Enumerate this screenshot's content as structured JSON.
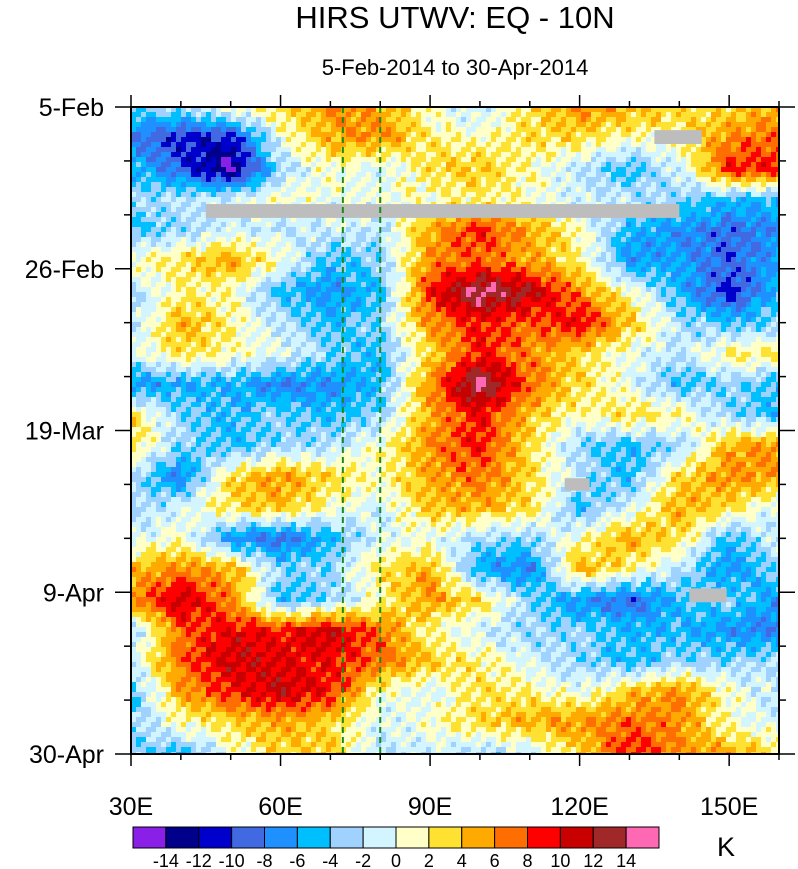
{
  "chart_data": {
    "type": "heatmap",
    "title": "HIRS UTWV: EQ - 10N",
    "subtitle": "5-Feb-2014 to 30-Apr-2014",
    "xlabel": "",
    "ylabel": "",
    "xlim": [
      30,
      160
    ],
    "ylim_days_since_5Feb": [
      0,
      84
    ],
    "x_ticks": [
      {
        "v": 30,
        "label": "30E"
      },
      {
        "v": 60,
        "label": "60E"
      },
      {
        "v": 90,
        "label": "90E"
      },
      {
        "v": 120,
        "label": "120E"
      },
      {
        "v": 150,
        "label": "150E"
      }
    ],
    "y_ticks": [
      {
        "v": 0,
        "label": "5-Feb"
      },
      {
        "v": 21,
        "label": "26-Feb"
      },
      {
        "v": 42,
        "label": "19-Mar"
      },
      {
        "v": 63,
        "label": "9-Apr"
      },
      {
        "v": 84,
        "label": "30-Apr"
      }
    ],
    "reference_lines_lon": [
      72.5,
      80
    ],
    "colorbar": {
      "unit": "K",
      "levels": [
        "-14",
        "-12",
        "-10",
        "-8",
        "-6",
        "-4",
        "-2",
        "0",
        "2",
        "4",
        "6",
        "8",
        "10",
        "12",
        "14"
      ],
      "colors": [
        "#8a20e8",
        "#00008b",
        "#0000cd",
        "#4169e1",
        "#1e90ff",
        "#00bfff",
        "#a0d2ff",
        "#d2f5ff",
        "#ffffc8",
        "#ffe132",
        "#ffaa00",
        "#ff6e00",
        "#ff0000",
        "#c80000",
        "#a02828",
        "#ff69b4"
      ]
    },
    "missing_color": "#bdbdbd",
    "missing_regions": [
      {
        "lon": [
          45,
          140
        ],
        "day": [
          12.6,
          14.4
        ]
      },
      {
        "lon": [
          135,
          144.5
        ],
        "day": [
          3,
          4.8
        ]
      },
      {
        "lon": [
          117,
          122
        ],
        "day": [
          48.2,
          49.8
        ]
      },
      {
        "lon": [
          142,
          149.5
        ],
        "day": [
          62.5,
          64.3
        ]
      }
    ],
    "grid_lon": [
      30,
      40,
      50,
      60,
      70,
      80,
      90,
      100,
      110,
      120,
      130,
      140,
      150,
      160
    ],
    "grid_day": [
      0,
      4,
      8,
      12,
      16,
      20,
      24,
      28,
      32,
      36,
      40,
      44,
      48,
      52,
      56,
      60,
      64,
      68,
      72,
      76,
      80,
      84
    ],
    "values": [
      [
        -3,
        -2,
        1,
        3,
        6,
        5,
        1,
        -2,
        3,
        6,
        5,
        3,
        3,
        5
      ],
      [
        -8,
        -11,
        -11,
        0,
        5,
        6,
        2,
        1,
        3,
        3,
        1,
        2,
        6,
        7
      ],
      [
        -5,
        -9,
        -15,
        -3,
        1,
        -1,
        3,
        4,
        1,
        -2,
        -5,
        -1,
        9,
        9
      ],
      [
        -3,
        -2,
        -1,
        1,
        0,
        0,
        1,
        2,
        1,
        -1,
        -2,
        -3,
        -5,
        -5
      ],
      [
        -5,
        -3,
        -1,
        -2,
        -1,
        -2,
        5,
        9,
        5,
        1,
        -5,
        -7,
        -9,
        -7
      ],
      [
        1,
        3,
        5,
        1,
        -5,
        -3,
        6,
        7,
        5,
        2,
        -7,
        -6,
        -9,
        -6
      ],
      [
        -3,
        2,
        1,
        -5,
        -7,
        -5,
        9,
        15,
        12,
        6,
        1,
        -5,
        -11,
        -5
      ],
      [
        -2,
        5,
        2,
        -2,
        -5,
        -3,
        6,
        9,
        7,
        10,
        4,
        -2,
        -5,
        -3
      ],
      [
        -1,
        3,
        1,
        0,
        -3,
        -5,
        3,
        9,
        6,
        3,
        0,
        -2,
        2,
        3
      ],
      [
        -7,
        -6,
        -5,
        -8,
        -7,
        -5,
        6,
        15,
        7,
        3,
        0,
        -5,
        -3,
        -5
      ],
      [
        3,
        -3,
        -5,
        -3,
        -5,
        -3,
        5,
        9,
        4,
        1,
        3,
        2,
        -3,
        -5
      ],
      [
        3,
        -3,
        -5,
        -3,
        -2,
        1,
        6,
        9,
        3,
        -3,
        -5,
        -3,
        5,
        6
      ],
      [
        -2,
        -8,
        3,
        6,
        3,
        1,
        5,
        7,
        3,
        -2,
        -5,
        3,
        6,
        5
      ],
      [
        -3,
        -1,
        3,
        4,
        1,
        -1,
        4,
        5,
        3,
        -5,
        -1,
        5,
        3,
        -1
      ],
      [
        -1,
        1,
        -7,
        -9,
        -5,
        -1,
        0,
        -3,
        -3,
        1,
        5,
        3,
        -5,
        -1
      ],
      [
        4,
        6,
        5,
        -3,
        -3,
        3,
        5,
        -6,
        -8,
        5,
        2,
        -2,
        -7,
        -3
      ],
      [
        6,
        11,
        6,
        -5,
        -3,
        1,
        6,
        3,
        -3,
        -7,
        -9,
        -5,
        -3,
        -7
      ],
      [
        -3,
        7,
        10,
        9,
        11,
        7,
        1,
        -1,
        -3,
        -3,
        -5,
        -5,
        -7,
        -8
      ],
      [
        -1,
        7,
        11,
        10,
        9,
        7,
        4,
        2,
        -1,
        -3,
        -5,
        -3,
        -3,
        -2
      ],
      [
        -5,
        5,
        9,
        11,
        9,
        1,
        -1,
        3,
        2,
        0,
        4,
        6,
        1,
        -2
      ],
      [
        -3,
        1,
        3,
        5,
        3,
        -1,
        1,
        3,
        5,
        6,
        7,
        6,
        1,
        -1
      ],
      [
        -3,
        -5,
        0,
        3,
        4,
        -2,
        -1,
        -3,
        -2,
        3,
        9,
        6,
        5,
        3
      ]
    ]
  }
}
